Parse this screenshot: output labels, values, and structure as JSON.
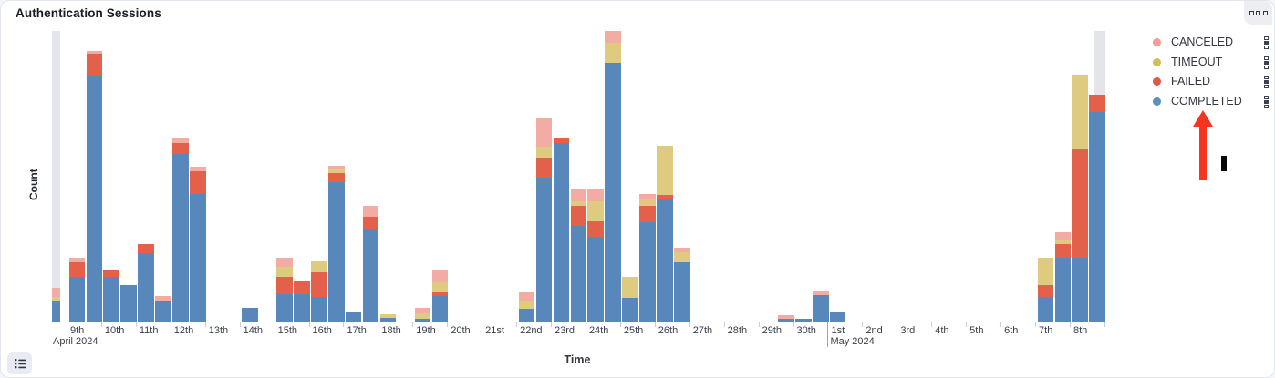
{
  "panel": {
    "title": "Authentication Sessions",
    "menu_icon": "boxes-horizontal-icon",
    "legend_toggle_icon": "list-icon"
  },
  "legend": {
    "position": "right",
    "items": [
      {
        "label": "CANCELED",
        "color": "#ef9f94"
      },
      {
        "label": "TIMEOUT",
        "color": "#d5bd5e"
      },
      {
        "label": "FAILED",
        "color": "#e15744"
      },
      {
        "label": "COMPLETED",
        "color": "#5c8ec1"
      }
    ],
    "item_handle_icon": "boxes-vertical-icon"
  },
  "annotations": {
    "arrow": {
      "shape": "up-arrow",
      "color": "#f8331f",
      "points_to": "COMPLETED legend item"
    },
    "text_cursor": {
      "shape": "vertical-bar",
      "color": "#000000"
    }
  },
  "chart_data": {
    "type": "bar",
    "stacked": true,
    "title": "Authentication Sessions",
    "xlabel": "Time",
    "ylabel": "Count",
    "y_tick_labels": "none visible",
    "ylim": [
      0,
      319
    ],
    "interval": "12h buckets, two bars per day",
    "grid": false,
    "partial_bucket_color": "#e4e5ea",
    "x_axis": {
      "day_labels": [
        "9th",
        "10th",
        "11th",
        "12th",
        "13th",
        "14th",
        "15th",
        "16th",
        "17th",
        "18th",
        "19th",
        "20th",
        "21st",
        "22nd",
        "23rd",
        "24th",
        "25th",
        "26th",
        "27th",
        "28th",
        "29th",
        "30th",
        "1st",
        "2nd",
        "3rd",
        "4th",
        "5th",
        "6th",
        "7th",
        "8th"
      ],
      "month_labels": [
        {
          "text": "April 2024",
          "at_domain_start": true,
          "day_index": 0
        },
        {
          "text": "May 2024",
          "at_domain_start": false,
          "day_index": 22
        }
      ]
    },
    "categories": [
      "Apr 8 PM",
      "Apr 9 AM",
      "Apr 9 PM",
      "Apr 10 AM",
      "Apr 10 PM",
      "Apr 11 AM",
      "Apr 11 PM",
      "Apr 12 AM",
      "Apr 12 PM",
      "Apr 13 AM",
      "Apr 13 PM",
      "Apr 14 AM",
      "Apr 14 PM",
      "Apr 15 AM",
      "Apr 15 PM",
      "Apr 16 AM",
      "Apr 16 PM",
      "Apr 17 AM",
      "Apr 17 PM",
      "Apr 18 AM",
      "Apr 18 PM",
      "Apr 19 AM",
      "Apr 19 PM",
      "Apr 20 AM",
      "Apr 20 PM",
      "Apr 21 AM",
      "Apr 21 PM",
      "Apr 22 AM",
      "Apr 22 PM",
      "Apr 23 AM",
      "Apr 23 PM",
      "Apr 24 AM",
      "Apr 24 PM",
      "Apr 25 AM",
      "Apr 25 PM",
      "Apr 26 AM",
      "Apr 26 PM",
      "Apr 27 AM",
      "Apr 27 PM",
      "Apr 28 AM",
      "Apr 28 PM",
      "Apr 29 AM",
      "Apr 29 PM",
      "Apr 30 AM",
      "Apr 30 PM",
      "May 1 AM",
      "May 1 PM",
      "May 2 AM",
      "May 2 PM",
      "May 3 AM",
      "May 3 PM",
      "May 4 AM",
      "May 4 PM",
      "May 5 AM",
      "May 5 PM",
      "May 6 AM",
      "May 6 PM",
      "May 7 AM",
      "May 7 PM",
      "May 8 AM",
      "May 8 PM"
    ],
    "series": [
      {
        "name": "COMPLETED",
        "color": "#5888bb",
        "values": [
          22,
          49,
          270,
          49,
          40,
          75,
          23,
          184,
          140,
          0,
          0,
          15,
          0,
          30,
          30,
          27,
          153,
          10,
          102,
          4,
          0,
          3,
          28,
          0,
          0,
          0,
          0,
          14,
          158,
          196,
          105,
          93,
          284,
          26,
          109,
          135,
          65,
          0,
          0,
          0,
          0,
          0,
          3,
          3,
          29,
          10,
          0,
          0,
          0,
          0,
          0,
          0,
          0,
          0,
          0,
          0,
          0,
          27,
          70,
          70,
          230
        ]
      },
      {
        "name": "FAILED",
        "color": "#e3614a",
        "values": [
          0,
          16,
          24,
          8,
          0,
          10,
          0,
          12,
          25,
          0,
          0,
          0,
          0,
          19,
          15,
          27,
          10,
          0,
          13,
          0,
          0,
          0,
          4,
          0,
          0,
          0,
          0,
          0,
          21,
          5,
          22,
          17,
          0,
          0,
          18,
          4,
          0,
          0,
          0,
          0,
          0,
          0,
          0,
          0,
          0,
          0,
          0,
          0,
          0,
          0,
          0,
          0,
          0,
          0,
          0,
          0,
          0,
          13,
          15,
          119,
          19
        ]
      },
      {
        "name": "TIMEOUT",
        "color": "#decb80",
        "values": [
          5,
          0,
          0,
          0,
          0,
          0,
          0,
          0,
          0,
          0,
          0,
          0,
          0,
          11,
          0,
          12,
          5,
          0,
          0,
          4,
          0,
          6,
          11,
          0,
          0,
          0,
          0,
          9,
          13,
          0,
          5,
          22,
          22,
          23,
          8,
          54,
          11,
          0,
          0,
          0,
          0,
          0,
          0,
          0,
          0,
          0,
          0,
          0,
          0,
          0,
          0,
          0,
          0,
          0,
          0,
          0,
          0,
          30,
          5,
          82,
          0
        ]
      },
      {
        "name": "CANCELED",
        "color": "#f2aca3",
        "values": [
          10,
          5,
          3,
          0,
          0,
          0,
          5,
          5,
          5,
          0,
          0,
          0,
          0,
          10,
          0,
          0,
          3,
          0,
          12,
          0,
          0,
          6,
          14,
          0,
          0,
          0,
          0,
          9,
          31,
          0,
          13,
          13,
          13,
          0,
          5,
          0,
          5,
          0,
          0,
          0,
          0,
          0,
          4,
          0,
          4,
          0,
          0,
          0,
          0,
          0,
          0,
          0,
          0,
          0,
          0,
          0,
          0,
          0,
          8,
          0,
          0
        ]
      }
    ]
  }
}
